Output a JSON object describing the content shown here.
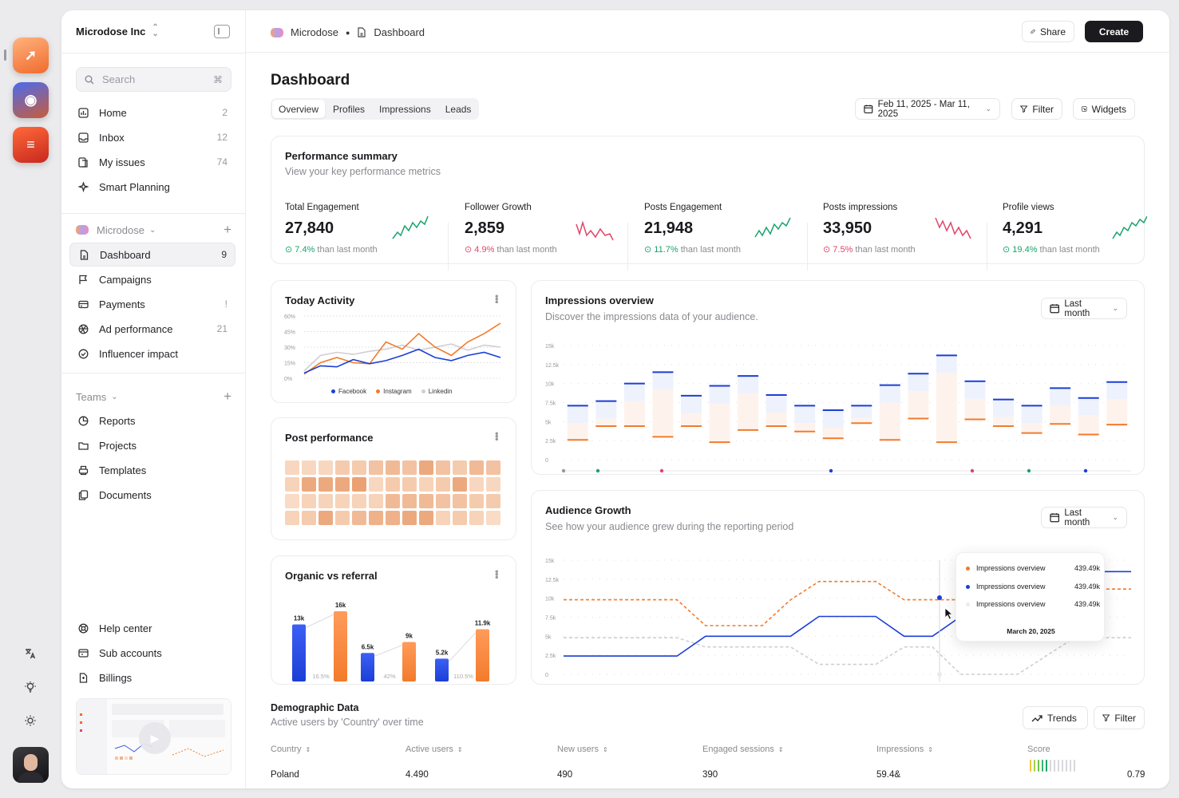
{
  "org": {
    "name": "Microdose Inc"
  },
  "search": {
    "placeholder": "Search",
    "shortcut": "⌘"
  },
  "nav_primary": [
    {
      "label": "Home",
      "count": "2"
    },
    {
      "label": "Inbox",
      "count": "12"
    },
    {
      "label": "My issues",
      "count": "74"
    },
    {
      "label": "Smart Planning",
      "count": ""
    }
  ],
  "workspace": {
    "label": "Microdose"
  },
  "nav_workspace": [
    {
      "label": "Dashboard",
      "count": "9"
    },
    {
      "label": "Campaigns",
      "count": ""
    },
    {
      "label": "Payments",
      "count": "!"
    },
    {
      "label": "Ad performance",
      "count": "21"
    },
    {
      "label": "Influencer impact",
      "count": ""
    }
  ],
  "teams": {
    "label": "Teams"
  },
  "nav_teams": [
    {
      "label": "Reports"
    },
    {
      "label": "Projects"
    },
    {
      "label": "Templates"
    },
    {
      "label": "Documents"
    }
  ],
  "nav_footer": [
    {
      "label": "Help center"
    },
    {
      "label": "Sub accounts"
    },
    {
      "label": "Billings"
    }
  ],
  "breadcrumb": {
    "root": "Microdose",
    "page": "Dashboard"
  },
  "header": {
    "share": "Share",
    "create": "Create"
  },
  "page": {
    "title": "Dashboard"
  },
  "tabs": [
    "Overview",
    "Profiles",
    "Impressions",
    "Leads"
  ],
  "toolbar": {
    "date_range": "Feb 11, 2025 - Mar 11, 2025",
    "filter": "Filter",
    "widgets": "Widgets"
  },
  "performance": {
    "title": "Performance summary",
    "subtitle": "View your key performance metrics",
    "metrics": [
      {
        "label": "Total Engagement",
        "value": "27,840",
        "change": "7.4%",
        "note": "than last month",
        "trend": "up"
      },
      {
        "label": "Follower Growth",
        "value": "2,859",
        "change": "4.9%",
        "note": "than last month",
        "trend": "down"
      },
      {
        "label": "Posts Engagement",
        "value": "21,948",
        "change": "11.7%",
        "note": "than last month",
        "trend": "up"
      },
      {
        "label": "Posts impressions",
        "value": "33,950",
        "change": "7.5%",
        "note": "than last month",
        "trend": "down"
      },
      {
        "label": "Profile views",
        "value": "4,291",
        "change": "19.4%",
        "note": "than last month",
        "trend": "up"
      }
    ]
  },
  "today_activity": {
    "title": "Today Activity"
  },
  "post_performance": {
    "title": "Post performance"
  },
  "organic": {
    "title": "Organic vs referral"
  },
  "impressions": {
    "title": "Impressions overview",
    "subtitle": "Discover the impressions data of your audience.",
    "range": "Last month"
  },
  "audience": {
    "title": "Audience Growth",
    "subtitle": "See how your audience grew during the reporting period",
    "range": "Last month",
    "tooltip": {
      "rows": [
        {
          "label": "Impressions overview",
          "value": "439.49k"
        },
        {
          "label": "Impressions overview",
          "value": "439.49k"
        },
        {
          "label": "Impressions overview",
          "value": "439.49k"
        }
      ],
      "date": "March 20, 2025"
    }
  },
  "demographic": {
    "title": "Demographic Data",
    "subtitle": "Active users by 'Country' over time",
    "trends": "Trends",
    "filter": "Filter",
    "columns": [
      "Country",
      "Active users",
      "New users",
      "Engaged sessions",
      "Impressions",
      "Score"
    ],
    "row": {
      "country": "Poland",
      "active": "4.490",
      "new": "490",
      "engaged": "390",
      "impressions": "59.4&",
      "score": "0.79"
    }
  },
  "colors": {
    "accent": "#1b3fd6",
    "orange": "#f27b2c",
    "up": "#1aa36b",
    "down": "#e0456a"
  },
  "chart_data": [
    {
      "type": "line",
      "name": "Today Activity",
      "yticks": [
        "60%",
        "45%",
        "30%",
        "15%",
        "0%"
      ],
      "ylim": [
        0,
        60
      ],
      "legend": [
        "Facebook",
        "Instagram",
        "Linkedin"
      ],
      "series": [
        {
          "name": "Facebook",
          "values": [
            5,
            12,
            11,
            18,
            14,
            17,
            22,
            28,
            20,
            17,
            22,
            25,
            20
          ]
        },
        {
          "name": "Instagram",
          "values": [
            4,
            15,
            20,
            15,
            14,
            35,
            28,
            43,
            30,
            22,
            35,
            43,
            53
          ]
        },
        {
          "name": "Linkedin",
          "values": [
            7,
            22,
            25,
            23,
            26,
            28,
            32,
            27,
            30,
            33,
            27,
            32,
            30
          ]
        }
      ]
    },
    {
      "type": "heatmap",
      "name": "Post performance",
      "values": [
        [
          0.2,
          0.2,
          0.2,
          0.35,
          0.35,
          0.45,
          0.55,
          0.45,
          0.75,
          0.45,
          0.35,
          0.55,
          0.45
        ],
        [
          0.25,
          0.75,
          0.75,
          0.75,
          0.85,
          0.2,
          0.35,
          0.35,
          0.25,
          0.35,
          0.75,
          0.2,
          0.2
        ],
        [
          0.15,
          0.25,
          0.25,
          0.25,
          0.25,
          0.25,
          0.55,
          0.55,
          0.55,
          0.45,
          0.45,
          0.35,
          0.35
        ],
        [
          0.25,
          0.35,
          0.75,
          0.35,
          0.55,
          0.65,
          0.65,
          0.75,
          0.75,
          0.25,
          0.35,
          0.25,
          0.15
        ]
      ]
    },
    {
      "type": "bar",
      "name": "Organic vs referral",
      "bars": [
        {
          "value": 13,
          "label": "13k",
          "color": "blue"
        },
        {
          "value": 16,
          "label": "16k",
          "color": "orange"
        },
        {
          "value": 6.5,
          "label": "6.5k",
          "color": "blue"
        },
        {
          "value": 9,
          "label": "9k",
          "color": "orange"
        },
        {
          "value": 5.2,
          "label": "5.2k",
          "color": "blue"
        },
        {
          "value": 11.9,
          "label": "11.9k",
          "color": "orange"
        }
      ],
      "ratios": [
        "16.5%",
        "42%",
        "110.5%"
      ]
    },
    {
      "type": "bar",
      "name": "Impressions overview",
      "yticks": [
        "15k",
        "12.5k",
        "10k",
        "7.5k",
        "5k",
        "2.5k",
        "0"
      ],
      "ylim": [
        0,
        15000
      ],
      "blue": [
        7100,
        7700,
        10000,
        11500,
        8400,
        9700,
        11000,
        8500,
        7100,
        6500,
        7100,
        9800,
        11300,
        13700,
        10300,
        7900,
        7100,
        9400,
        8100,
        10200
      ],
      "orange": [
        2600,
        4400,
        4400,
        3000,
        4400,
        2300,
        3900,
        4400,
        3700,
        2800,
        4800,
        2600,
        5400,
        2300,
        5300,
        4400,
        3500,
        4700,
        3300,
        4600
      ]
    },
    {
      "type": "line",
      "name": "Audience Growth",
      "yticks": [
        "15k",
        "12.5k",
        "10k",
        "7.5k",
        "5k",
        "2.5k",
        "0"
      ],
      "ylim": [
        0,
        15000
      ],
      "series": [
        {
          "name": "orange",
          "values": [
            9800,
            9800,
            9800,
            9800,
            9800,
            6400,
            6400,
            6400,
            9800,
            12200,
            12200,
            12200,
            9800,
            9800,
            9800,
            9800,
            9800,
            9800,
            9800,
            11200,
            11200
          ]
        },
        {
          "name": "blue",
          "values": [
            2400,
            2400,
            2400,
            2400,
            2400,
            5000,
            5000,
            5000,
            5000,
            7600,
            7600,
            7600,
            5000,
            5000,
            7600,
            7600,
            7600,
            7600,
            7600,
            13500,
            13500
          ]
        },
        {
          "name": "gray",
          "values": [
            4800,
            4800,
            4800,
            4800,
            4800,
            3600,
            3600,
            3600,
            3600,
            1300,
            1300,
            1300,
            3600,
            3600,
            0,
            0,
            0,
            2400,
            4800,
            4800,
            4800
          ]
        }
      ]
    }
  ]
}
